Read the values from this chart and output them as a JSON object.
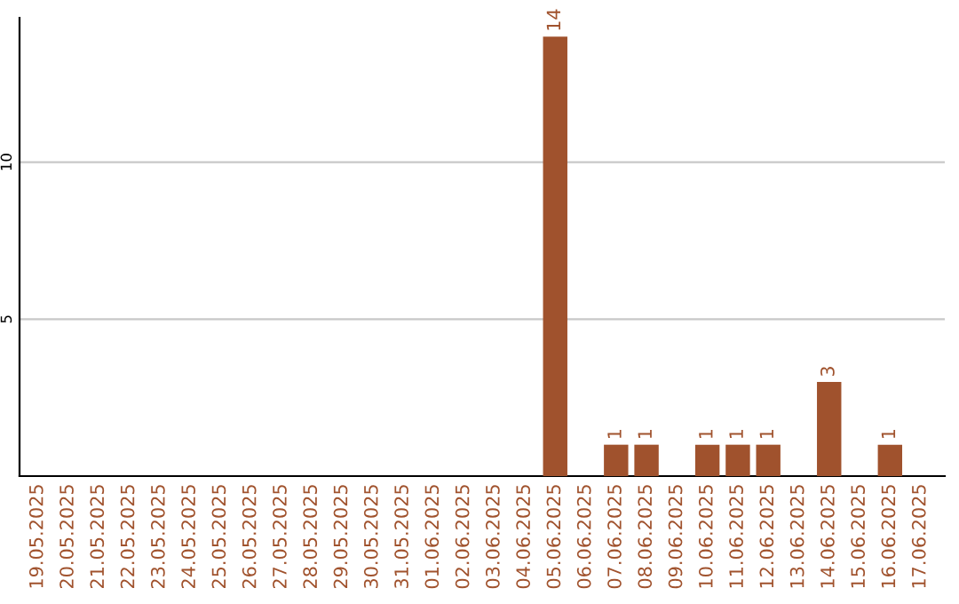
{
  "chart_data": {
    "type": "bar",
    "categories": [
      "19.05.2025",
      "20.05.2025",
      "21.05.2025",
      "22.05.2025",
      "23.05.2025",
      "24.05.2025",
      "25.05.2025",
      "26.05.2025",
      "27.05.2025",
      "28.05.2025",
      "29.05.2025",
      "30.05.2025",
      "31.05.2025",
      "01.06.2025",
      "02.06.2025",
      "03.06.2025",
      "04.06.2025",
      "05.06.2025",
      "06.06.2025",
      "07.06.2025",
      "08.06.2025",
      "09.06.2025",
      "10.06.2025",
      "11.06.2025",
      "12.06.2025",
      "13.06.2025",
      "14.06.2025",
      "15.06.2025",
      "16.06.2025",
      "17.06.2025"
    ],
    "values": [
      0,
      0,
      0,
      0,
      0,
      0,
      0,
      0,
      0,
      0,
      0,
      0,
      0,
      0,
      0,
      0,
      0,
      14,
      0,
      1,
      1,
      0,
      1,
      1,
      1,
      0,
      3,
      0,
      1,
      0
    ],
    "value_labels": [
      null,
      null,
      null,
      null,
      null,
      null,
      null,
      null,
      null,
      null,
      null,
      null,
      null,
      null,
      null,
      null,
      null,
      "14",
      null,
      "1",
      "1",
      null,
      "1",
      "1",
      "1",
      null,
      "3",
      null,
      "1",
      null
    ],
    "color": "#a0522d",
    "ylim": [
      0,
      14.6
    ],
    "yticks": [
      5,
      10
    ],
    "grid": "y"
  }
}
